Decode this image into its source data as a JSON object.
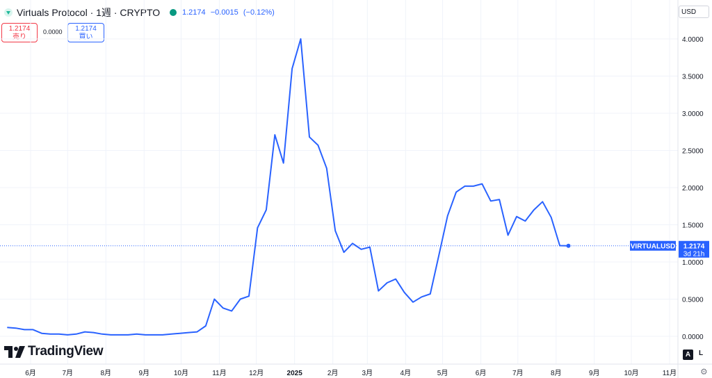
{
  "header": {
    "title": "Virtuals Protocol · 1週 · CRYPTO",
    "last_price": "1.2174",
    "change": "−0.0015",
    "change_pct": "(−0.12%)"
  },
  "trade": {
    "sell_price": "1.2174",
    "sell_label": "売り",
    "spread": "0.0000",
    "buy_price": "1.2174",
    "buy_label": "買い"
  },
  "price_scale": {
    "currency": "USD",
    "symbol_tag": "VIRTUALUSD",
    "last_tag": "1.2174",
    "countdown": "3d 21h",
    "auto_label": "A",
    "log_label": "L"
  },
  "branding": {
    "name": "TradingView"
  },
  "colors": {
    "line": "#2962ff",
    "up": "#089981",
    "down": "#f23645",
    "grid": "#f0f3fa"
  },
  "icons": {
    "settings": "gear-icon",
    "status": "market-status-dot"
  },
  "chart_data": {
    "type": "line",
    "title": "Virtuals Protocol · 1週 · CRYPTO",
    "ylim": [
      -0.1,
      4.2
    ],
    "yticks": [
      0.0,
      0.5,
      1.0,
      1.5,
      2.0,
      2.5,
      3.0,
      3.5,
      4.0
    ],
    "ytick_labels": [
      "0.0000",
      "0.5000",
      "1.0000",
      "1.5000",
      "2.0000",
      "2.5000",
      "3.0000",
      "3.5000",
      "4.0000"
    ],
    "xtick_labels": [
      "6月",
      "7月",
      "8月",
      "9月",
      "10月",
      "11月",
      "12月",
      "2025",
      "2月",
      "3月",
      "4月",
      "5月",
      "6月",
      "7月",
      "8月",
      "9月",
      "10月",
      "11月"
    ],
    "xtick_dates": [
      "2024-06-01",
      "2024-07-01",
      "2024-08-01",
      "2024-09-01",
      "2024-10-01",
      "2024-11-01",
      "2024-12-01",
      "2025-01-01",
      "2025-02-01",
      "2025-03-01",
      "2025-04-01",
      "2025-05-01",
      "2025-06-01",
      "2025-07-01",
      "2025-08-01",
      "2025-09-01",
      "2025-10-01",
      "2025-11-01"
    ],
    "grid": true,
    "series": [
      {
        "values": [
          [
            "2024-05-13",
            0.12
          ],
          [
            "2024-05-20",
            0.11
          ],
          [
            "2024-05-27",
            0.09
          ],
          [
            "2024-06-03",
            0.09
          ],
          [
            "2024-06-10",
            0.04
          ],
          [
            "2024-06-17",
            0.03
          ],
          [
            "2024-06-24",
            0.03
          ],
          [
            "2024-07-01",
            0.02
          ],
          [
            "2024-07-08",
            0.03
          ],
          [
            "2024-07-15",
            0.06
          ],
          [
            "2024-07-22",
            0.05
          ],
          [
            "2024-07-29",
            0.03
          ],
          [
            "2024-08-05",
            0.02
          ],
          [
            "2024-08-12",
            0.02
          ],
          [
            "2024-08-19",
            0.02
          ],
          [
            "2024-08-26",
            0.03
          ],
          [
            "2024-09-02",
            0.02
          ],
          [
            "2024-09-09",
            0.02
          ],
          [
            "2024-09-16",
            0.02
          ],
          [
            "2024-09-23",
            0.03
          ],
          [
            "2024-09-30",
            0.04
          ],
          [
            "2024-10-07",
            0.05
          ],
          [
            "2024-10-14",
            0.06
          ],
          [
            "2024-10-21",
            0.14
          ],
          [
            "2024-10-28",
            0.5
          ],
          [
            "2024-11-04",
            0.38
          ],
          [
            "2024-11-11",
            0.34
          ],
          [
            "2024-11-18",
            0.5
          ],
          [
            "2024-11-25",
            0.54
          ],
          [
            "2024-12-02",
            1.46
          ],
          [
            "2024-12-09",
            1.7
          ],
          [
            "2024-12-16",
            2.71
          ],
          [
            "2024-12-23",
            2.33
          ],
          [
            "2024-12-30",
            3.6
          ],
          [
            "2025-01-06",
            4.0
          ],
          [
            "2025-01-13",
            2.68
          ],
          [
            "2025-01-20",
            2.57
          ],
          [
            "2025-01-27",
            2.26
          ],
          [
            "2025-02-03",
            1.42
          ],
          [
            "2025-02-10",
            1.13
          ],
          [
            "2025-02-17",
            1.25
          ],
          [
            "2025-02-24",
            1.17
          ],
          [
            "2025-03-03",
            1.2
          ],
          [
            "2025-03-10",
            0.61
          ],
          [
            "2025-03-17",
            0.72
          ],
          [
            "2025-03-24",
            0.77
          ],
          [
            "2025-03-31",
            0.59
          ],
          [
            "2025-04-07",
            0.46
          ],
          [
            "2025-04-14",
            0.53
          ],
          [
            "2025-04-21",
            0.57
          ],
          [
            "2025-04-28",
            1.09
          ],
          [
            "2025-05-05",
            1.62
          ],
          [
            "2025-05-12",
            1.94
          ],
          [
            "2025-05-19",
            2.02
          ],
          [
            "2025-05-26",
            2.02
          ],
          [
            "2025-06-02",
            2.05
          ],
          [
            "2025-06-09",
            1.82
          ],
          [
            "2025-06-16",
            1.84
          ],
          [
            "2025-06-23",
            1.36
          ],
          [
            "2025-06-30",
            1.61
          ],
          [
            "2025-07-07",
            1.55
          ],
          [
            "2025-07-14",
            1.7
          ],
          [
            "2025-07-21",
            1.81
          ],
          [
            "2025-07-28",
            1.6
          ],
          [
            "2025-08-04",
            1.22
          ],
          [
            "2025-08-11",
            1.2174
          ]
        ]
      }
    ]
  }
}
